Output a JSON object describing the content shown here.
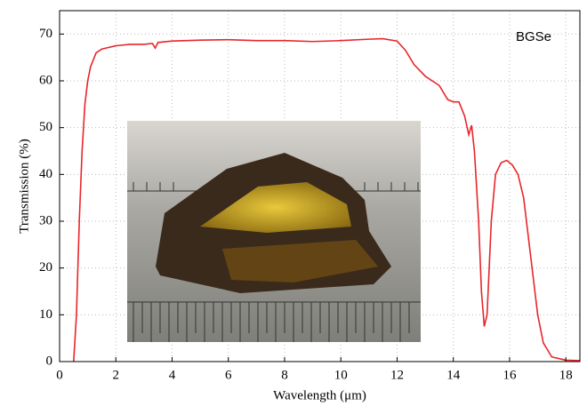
{
  "chart_data": {
    "type": "line",
    "annotation": "BGSe",
    "x_label": "Wavelength (μm)",
    "y_label": "Transmission (%)",
    "xlim": [
      0,
      18.5
    ],
    "xticks": [
      0,
      2,
      4,
      6,
      8,
      10,
      12,
      14,
      16,
      18
    ],
    "ylim": [
      0,
      75
    ],
    "yticks": [
      0,
      10,
      20,
      30,
      40,
      50,
      60,
      70
    ],
    "grid": true,
    "series": [
      {
        "color": "#e8262a",
        "x": [
          0.5,
          0.6,
          0.7,
          0.8,
          0.9,
          1.0,
          1.1,
          1.3,
          1.5,
          2,
          2.5,
          3,
          3.3,
          3.4,
          3.5,
          4,
          5,
          6,
          7,
          8,
          9,
          10,
          11,
          11.5,
          12,
          12.3,
          12.6,
          13,
          13.5,
          13.8,
          14,
          14.2,
          14.4,
          14.55,
          14.65,
          14.75,
          14.9,
          15.0,
          15.1,
          15.2,
          15.35,
          15.5,
          15.7,
          15.9,
          16.1,
          16.3,
          16.5,
          16.8,
          17.0,
          17.2,
          17.5,
          18,
          18.5
        ],
        "values": [
          0,
          10,
          30,
          45,
          55,
          60,
          63,
          66,
          66.8,
          67.5,
          67.8,
          67.8,
          68,
          67,
          68.2,
          68.5,
          68.7,
          68.8,
          68.6,
          68.6,
          68.4,
          68.6,
          68.9,
          69,
          68.5,
          66.5,
          63.5,
          61,
          59,
          56,
          55.5,
          55.5,
          52.5,
          48.5,
          50.5,
          45,
          30,
          15,
          7.5,
          10,
          30,
          40,
          42.5,
          43,
          42,
          40,
          35,
          20,
          10,
          4,
          1,
          0.3,
          0.2
        ]
      }
    ]
  }
}
